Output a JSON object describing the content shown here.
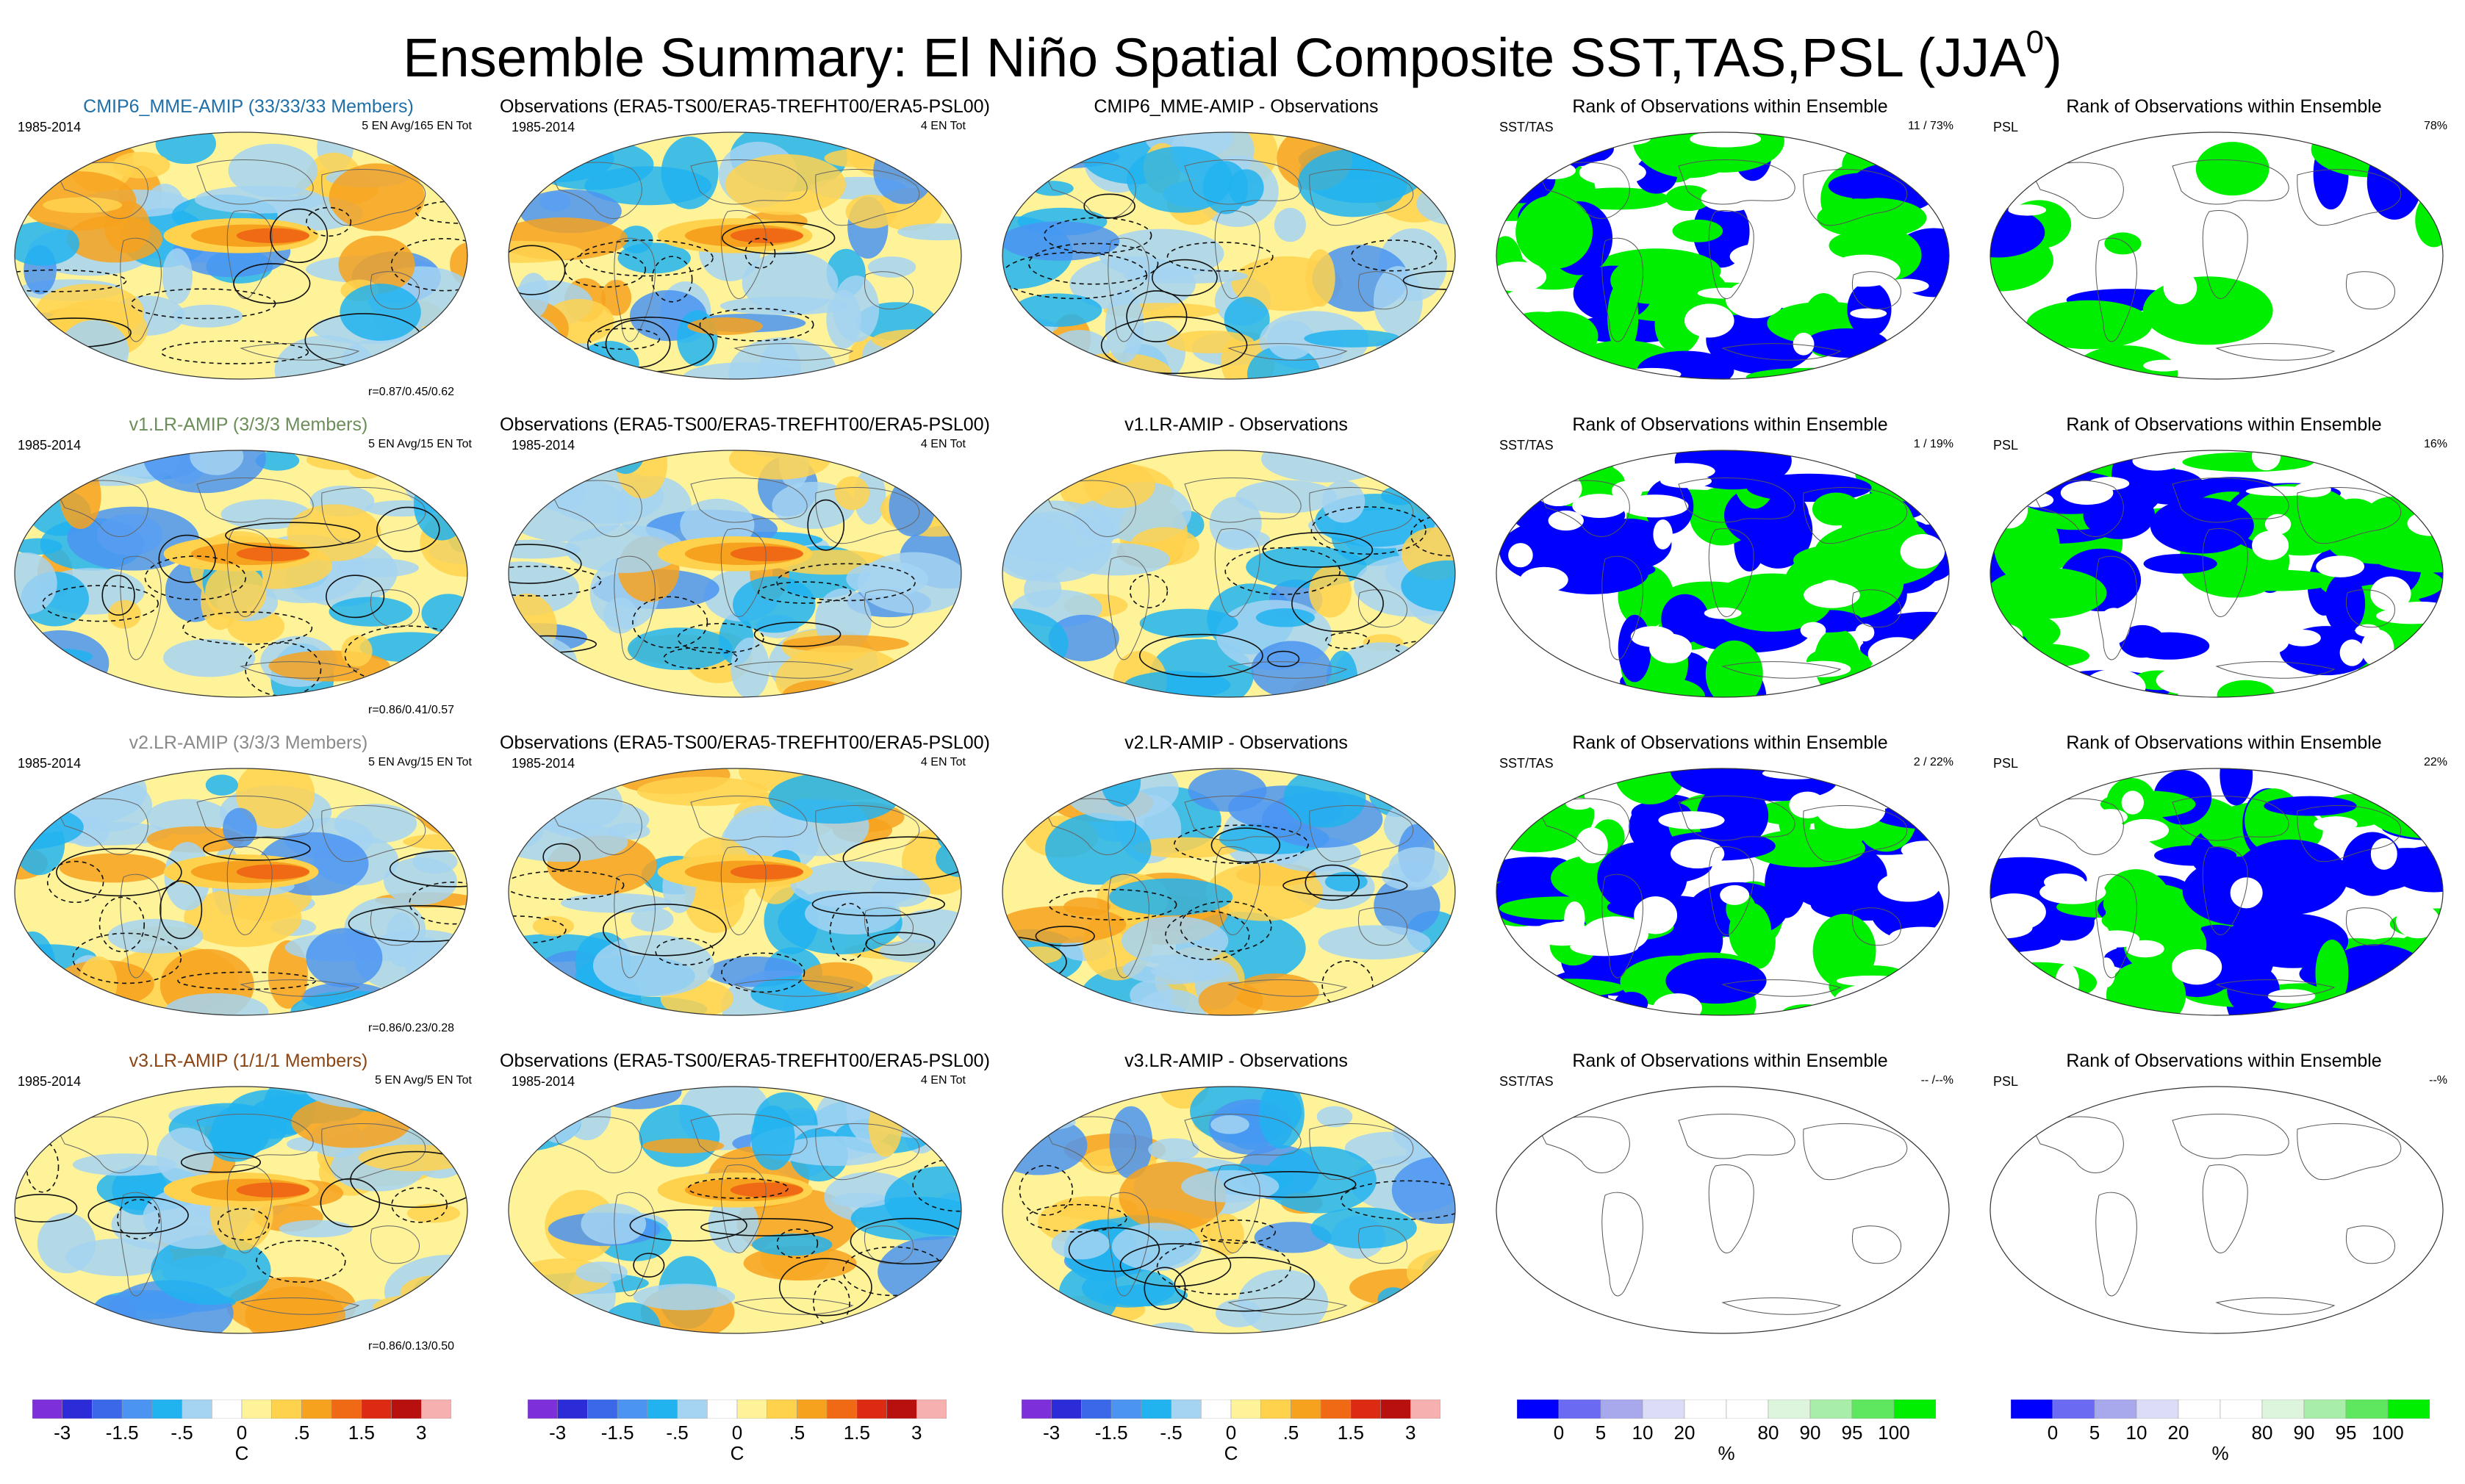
{
  "title_main": "Ensemble Summary: El Niño Spatial Composite SST,TAS,PSL (JJA",
  "title_sup": "0",
  "title_close": ")",
  "colors": {
    "temp_scale": [
      "#7d2fd9",
      "#2b2bd8",
      "#3a68e8",
      "#4b94f2",
      "#21b3f0",
      "#a5d3f2",
      "#ffffff",
      "#fff39a",
      "#ffd24d",
      "#f7a21f",
      "#f06a16",
      "#dd2a12",
      "#b80f0f",
      "#f6b0b0"
    ],
    "rank_scale": [
      "#0000ff",
      "#6a6af2",
      "#a8a8ec",
      "#dcdcf6",
      "#ffffff",
      "#ffffff",
      "#ddf5dd",
      "#a8eea8",
      "#5fe85f",
      "#00ee00"
    ],
    "temp_bg_positive": "#fff39a",
    "temp_bg_negative": "#a5d3f2",
    "rank_low": "#0000ff",
    "rank_high": "#00ee00"
  },
  "rows": [
    {
      "model_title": "CMIP6_MME-AMIP (33/33/33 Members)",
      "model_title_color": "#1f6fa8",
      "model_period": "1985-2014",
      "model_count": "5 EN Avg/165 EN Tot",
      "model_corr": "r=0.87/0.45/0.62",
      "obs_title": "Observations (ERA5-TS00/ERA5-TREFHT00/ERA5-PSL00)",
      "obs_period": "1985-2014",
      "obs_count": "4 EN Tot",
      "diff_title": "CMIP6_MME-AMIP - Observations",
      "rank1_title": "Rank of Observations within Ensemble",
      "rank1_var": "SST/TAS",
      "rank1_value": "11 /  73%",
      "rank2_title": "Rank of Observations within Ensemble",
      "rank2_var": "PSL",
      "rank2_value": "78%",
      "rank1_coverage": 0.73,
      "rank2_coverage": 0.2
    },
    {
      "model_title": "v1.LR-AMIP (3/3/3 Members)",
      "model_title_color": "#6b8e5a",
      "model_period": "1985-2014",
      "model_count": "5 EN Avg/15 EN Tot",
      "model_corr": "r=0.86/0.41/0.57",
      "obs_title": "Observations (ERA5-TS00/ERA5-TREFHT00/ERA5-PSL00)",
      "obs_period": "1985-2014",
      "obs_count": "4 EN Tot",
      "diff_title": "v1.LR-AMIP - Observations",
      "rank1_title": "Rank of Observations within Ensemble",
      "rank1_var": "SST/TAS",
      "rank1_value": "1 /  19%",
      "rank2_title": "Rank of Observations within Ensemble",
      "rank2_var": "PSL",
      "rank2_value": "16%",
      "rank1_coverage": 0.85,
      "rank2_coverage": 0.95
    },
    {
      "model_title": "v2.LR-AMIP (3/3/3 Members)",
      "model_title_color": "#8a8a8a",
      "model_period": "1985-2014",
      "model_count": "5 EN Avg/15 EN Tot",
      "model_corr": "r=0.86/0.23/0.28",
      "obs_title": "Observations (ERA5-TS00/ERA5-TREFHT00/ERA5-PSL00)",
      "obs_period": "1985-2014",
      "obs_count": "4 EN Tot",
      "diff_title": "v2.LR-AMIP - Observations",
      "rank1_title": "Rank of Observations within Ensemble",
      "rank1_var": "SST/TAS",
      "rank1_value": "2 /  22%",
      "rank2_title": "Rank of Observations within Ensemble",
      "rank2_var": "PSL",
      "rank2_value": "22%",
      "rank1_coverage": 0.85,
      "rank2_coverage": 0.9
    },
    {
      "model_title": "v3.LR-AMIP (1/1/1 Members)",
      "model_title_color": "#8b4513",
      "model_period": "1985-2014",
      "model_count": "5 EN Avg/5 EN Tot",
      "model_corr": "r=0.86/0.13/0.50",
      "obs_title": "Observations (ERA5-TS00/ERA5-TREFHT00/ERA5-PSL00)",
      "obs_period": "1985-2014",
      "obs_count": "4 EN Tot",
      "diff_title": "v3.LR-AMIP - Observations",
      "rank1_title": "Rank of Observations within Ensemble",
      "rank1_var": "SST/TAS",
      "rank1_value": "-- /--%",
      "rank2_title": "Rank of Observations within Ensemble",
      "rank2_var": "PSL",
      "rank2_value": "--%",
      "rank1_coverage": 0.0,
      "rank2_coverage": 0.0
    }
  ],
  "chart_data": {
    "type": "heatmap",
    "colorbars": [
      {
        "id": "temp1",
        "ticks": [
          "-3",
          "-1.5",
          "-.5",
          "0",
          ".5",
          "1.5",
          "3"
        ],
        "unit": "C"
      },
      {
        "id": "temp2",
        "ticks": [
          "-3",
          "-1.5",
          "-.5",
          "0",
          ".5",
          "1.5",
          "3"
        ],
        "unit": "C"
      },
      {
        "id": "temp3",
        "ticks": [
          "-3",
          "-1.5",
          "-.5",
          "0",
          ".5",
          "1.5",
          "3"
        ],
        "unit": "C"
      },
      {
        "id": "rank1",
        "ticks": [
          "0",
          "5",
          "10",
          "20",
          "80",
          "90",
          "95",
          "100"
        ],
        "unit": "%"
      },
      {
        "id": "rank2",
        "ticks": [
          "0",
          "5",
          "10",
          "20",
          "80",
          "90",
          "95",
          "100"
        ],
        "unit": "%"
      }
    ]
  }
}
